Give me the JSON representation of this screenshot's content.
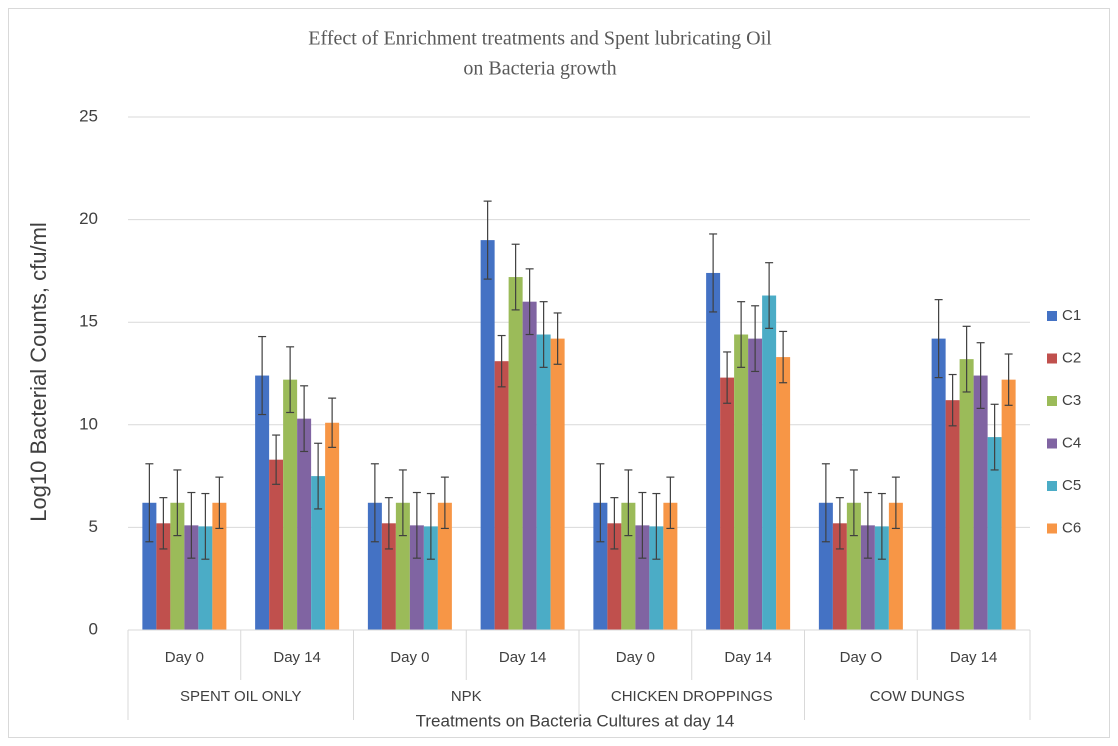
{
  "chart_data": {
    "type": "bar",
    "title": [
      "Effect of Enrichment treatments and Spent lubricating Oil",
      "on Bacteria growth"
    ],
    "y_label": "Log10 Bacterial Counts, cfu/ml",
    "x_label": "Treatments on Bacteria Cultures at day 14",
    "category_groups": [
      {
        "name": "SPENT OIL ONLY",
        "categories": [
          "Day 0",
          "Day 14"
        ]
      },
      {
        "name": "NPK",
        "categories": [
          "Day 0",
          "Day 14"
        ]
      },
      {
        "name": "CHICKEN DROPPINGS",
        "categories": [
          "Day 0",
          "Day 14"
        ]
      },
      {
        "name": "COW DUNGS",
        "categories": [
          "Day O",
          "Day 14"
        ]
      }
    ],
    "series": [
      {
        "name": "C1",
        "color": "#4472c4",
        "values": [
          6.2,
          12.4,
          6.2,
          19.0,
          6.2,
          17.4,
          6.2,
          14.2
        ],
        "errors": [
          1.9,
          1.9,
          1.9,
          1.9,
          1.9,
          1.9,
          1.9,
          1.9
        ]
      },
      {
        "name": "C2",
        "color": "#c0504d",
        "values": [
          5.2,
          8.3,
          5.2,
          13.1,
          5.2,
          12.3,
          5.2,
          11.2
        ],
        "errors": [
          1.25,
          1.2,
          1.25,
          1.25,
          1.25,
          1.25,
          1.25,
          1.25
        ]
      },
      {
        "name": "C3",
        "color": "#9bbb59",
        "values": [
          6.2,
          12.2,
          6.2,
          17.2,
          6.2,
          14.4,
          6.2,
          13.2
        ],
        "errors": [
          1.6,
          1.6,
          1.6,
          1.6,
          1.6,
          1.6,
          1.6,
          1.6
        ]
      },
      {
        "name": "C4",
        "color": "#8064a2",
        "values": [
          5.1,
          10.3,
          5.1,
          16.0,
          5.1,
          14.2,
          5.1,
          12.4
        ],
        "errors": [
          1.6,
          1.6,
          1.6,
          1.6,
          1.6,
          1.6,
          1.6,
          1.6
        ]
      },
      {
        "name": "C5",
        "color": "#4bacc6",
        "values": [
          5.05,
          7.5,
          5.05,
          14.4,
          5.05,
          16.3,
          5.05,
          9.4
        ],
        "errors": [
          1.6,
          1.6,
          1.6,
          1.6,
          1.6,
          1.6,
          1.6,
          1.6
        ]
      },
      {
        "name": "C6",
        "color": "#f79646",
        "values": [
          6.2,
          10.1,
          6.2,
          14.2,
          6.2,
          13.3,
          6.2,
          12.2
        ],
        "errors": [
          1.25,
          1.2,
          1.25,
          1.25,
          1.25,
          1.25,
          1.25,
          1.25
        ]
      }
    ],
    "ylim": [
      0,
      25
    ],
    "yticks": [
      0,
      5,
      10,
      15,
      20,
      25
    ],
    "grid": true,
    "legend": "right"
  }
}
